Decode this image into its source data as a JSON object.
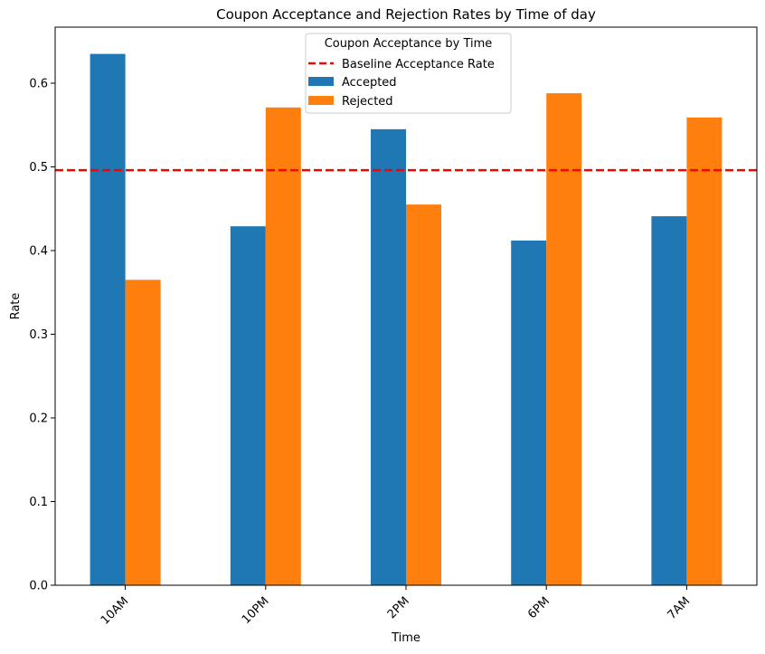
{
  "chart_data": {
    "type": "bar",
    "title": "Coupon Acceptance and Rejection Rates by Time of day",
    "xlabel": "Time",
    "ylabel": "Rate",
    "categories": [
      "10AM",
      "10PM",
      "2PM",
      "6PM",
      "7AM"
    ],
    "series": [
      {
        "name": "Accepted",
        "color": "#1f77b4",
        "values": [
          0.635,
          0.429,
          0.545,
          0.412,
          0.441
        ]
      },
      {
        "name": "Rejected",
        "color": "#ff7f0e",
        "values": [
          0.365,
          0.571,
          0.455,
          0.588,
          0.559
        ]
      }
    ],
    "baseline": {
      "name": "Baseline Acceptance Rate",
      "value": 0.496,
      "color": "#ff0000",
      "style": "dashed"
    },
    "ylim": [
      0,
      0.667
    ],
    "yticks": [
      0.0,
      0.1,
      0.2,
      0.3,
      0.4,
      0.5,
      0.6
    ],
    "ytick_labels": [
      "0.0",
      "0.1",
      "0.2",
      "0.3",
      "0.4",
      "0.5",
      "0.6"
    ],
    "legend": {
      "title": "Coupon Acceptance by Time",
      "placement": "top-center"
    },
    "grid": false
  }
}
